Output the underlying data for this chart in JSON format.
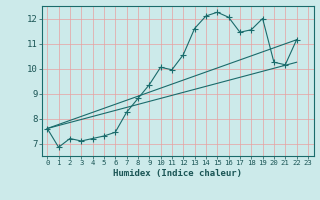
{
  "xlabel": "Humidex (Indice chaleur)",
  "ylabel": "",
  "bg_color": "#cceaea",
  "line_color": "#1a6b6b",
  "grid_color": "#e8a0a0",
  "xlim": [
    -0.5,
    23.5
  ],
  "ylim": [
    6.5,
    12.5
  ],
  "xticks": [
    0,
    1,
    2,
    3,
    4,
    5,
    6,
    7,
    8,
    9,
    10,
    11,
    12,
    13,
    14,
    15,
    16,
    17,
    18,
    19,
    20,
    21,
    22,
    23
  ],
  "yticks": [
    7,
    8,
    9,
    10,
    11,
    12
  ],
  "line1_x": [
    0,
    1,
    2,
    3,
    4,
    5,
    6,
    7,
    8,
    9,
    10,
    11,
    12,
    13,
    14,
    15,
    16,
    17,
    18,
    19,
    20,
    21,
    22
  ],
  "line1_y": [
    7.6,
    6.85,
    7.2,
    7.1,
    7.2,
    7.3,
    7.45,
    8.25,
    8.8,
    9.35,
    10.05,
    9.95,
    10.55,
    11.6,
    12.1,
    12.25,
    12.05,
    11.45,
    11.55,
    12.0,
    10.25,
    10.15,
    11.15
  ],
  "line2_x": [
    0,
    22
  ],
  "line2_y": [
    7.6,
    11.15
  ],
  "line3_x": [
    0,
    22
  ],
  "line3_y": [
    7.6,
    10.25
  ],
  "marker_size": 2.5
}
